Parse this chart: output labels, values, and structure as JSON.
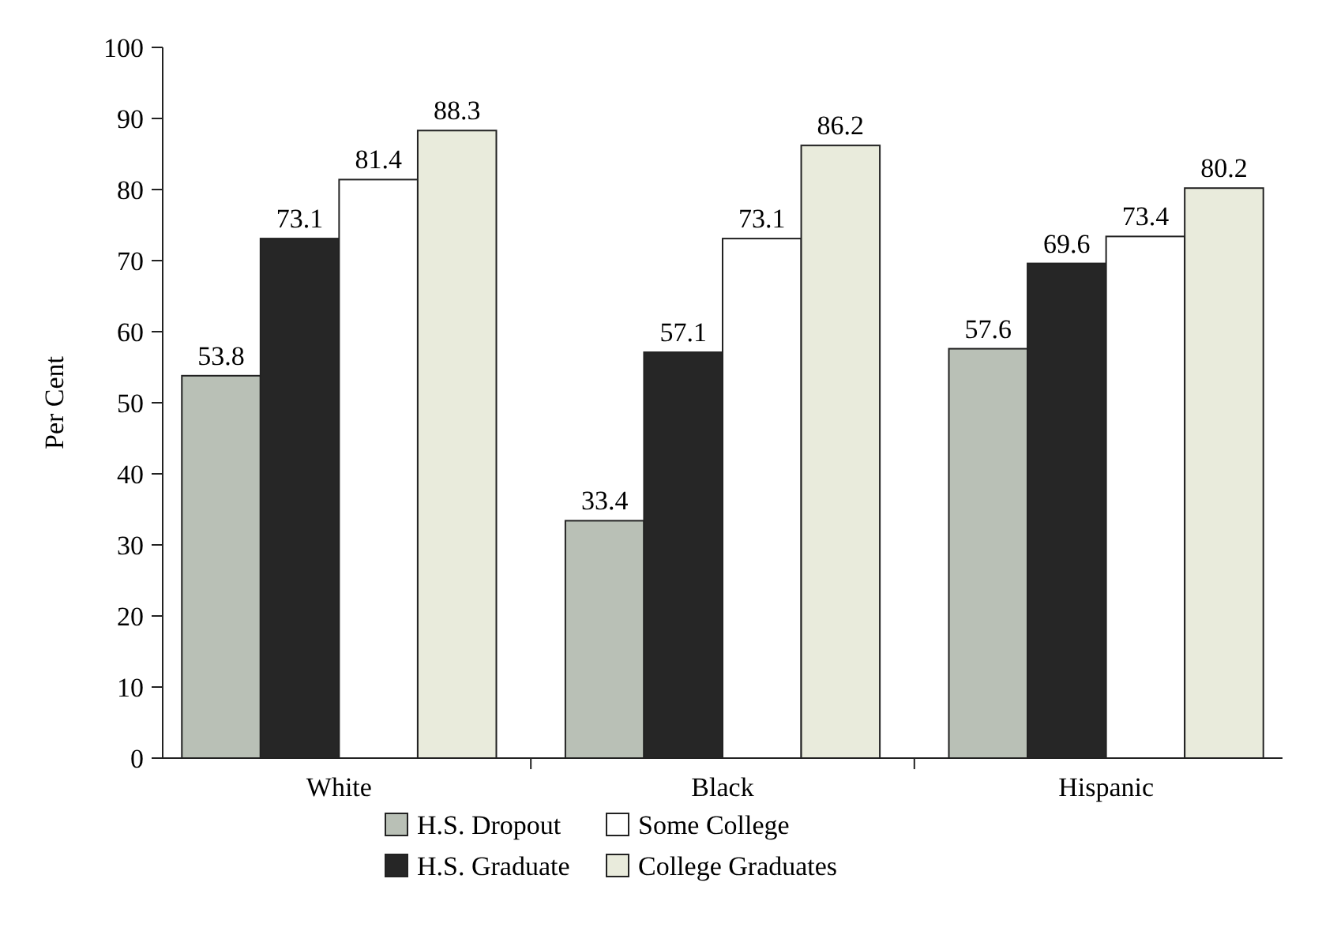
{
  "chart_data": {
    "type": "bar",
    "ylabel": "Per Cent",
    "categories": [
      "White",
      "Black",
      "Hispanic"
    ],
    "series": [
      {
        "name": "H.S. Dropout",
        "color": "#b9c0b6",
        "values": [
          53.8,
          33.4,
          57.6
        ]
      },
      {
        "name": "H.S. Graduate",
        "color": "#262626",
        "values": [
          73.1,
          57.1,
          69.6
        ]
      },
      {
        "name": "Some College",
        "color": "#ffffff",
        "values": [
          81.4,
          73.1,
          73.4
        ]
      },
      {
        "name": "College Graduates",
        "color": "#e9ebdc",
        "values": [
          88.3,
          86.2,
          80.2
        ]
      }
    ],
    "ylim": [
      0,
      100
    ],
    "yticks": [
      0,
      10,
      20,
      30,
      40,
      50,
      60,
      70,
      80,
      90,
      100
    ],
    "data_labels": true,
    "legend": "bottom",
    "grid": false
  }
}
